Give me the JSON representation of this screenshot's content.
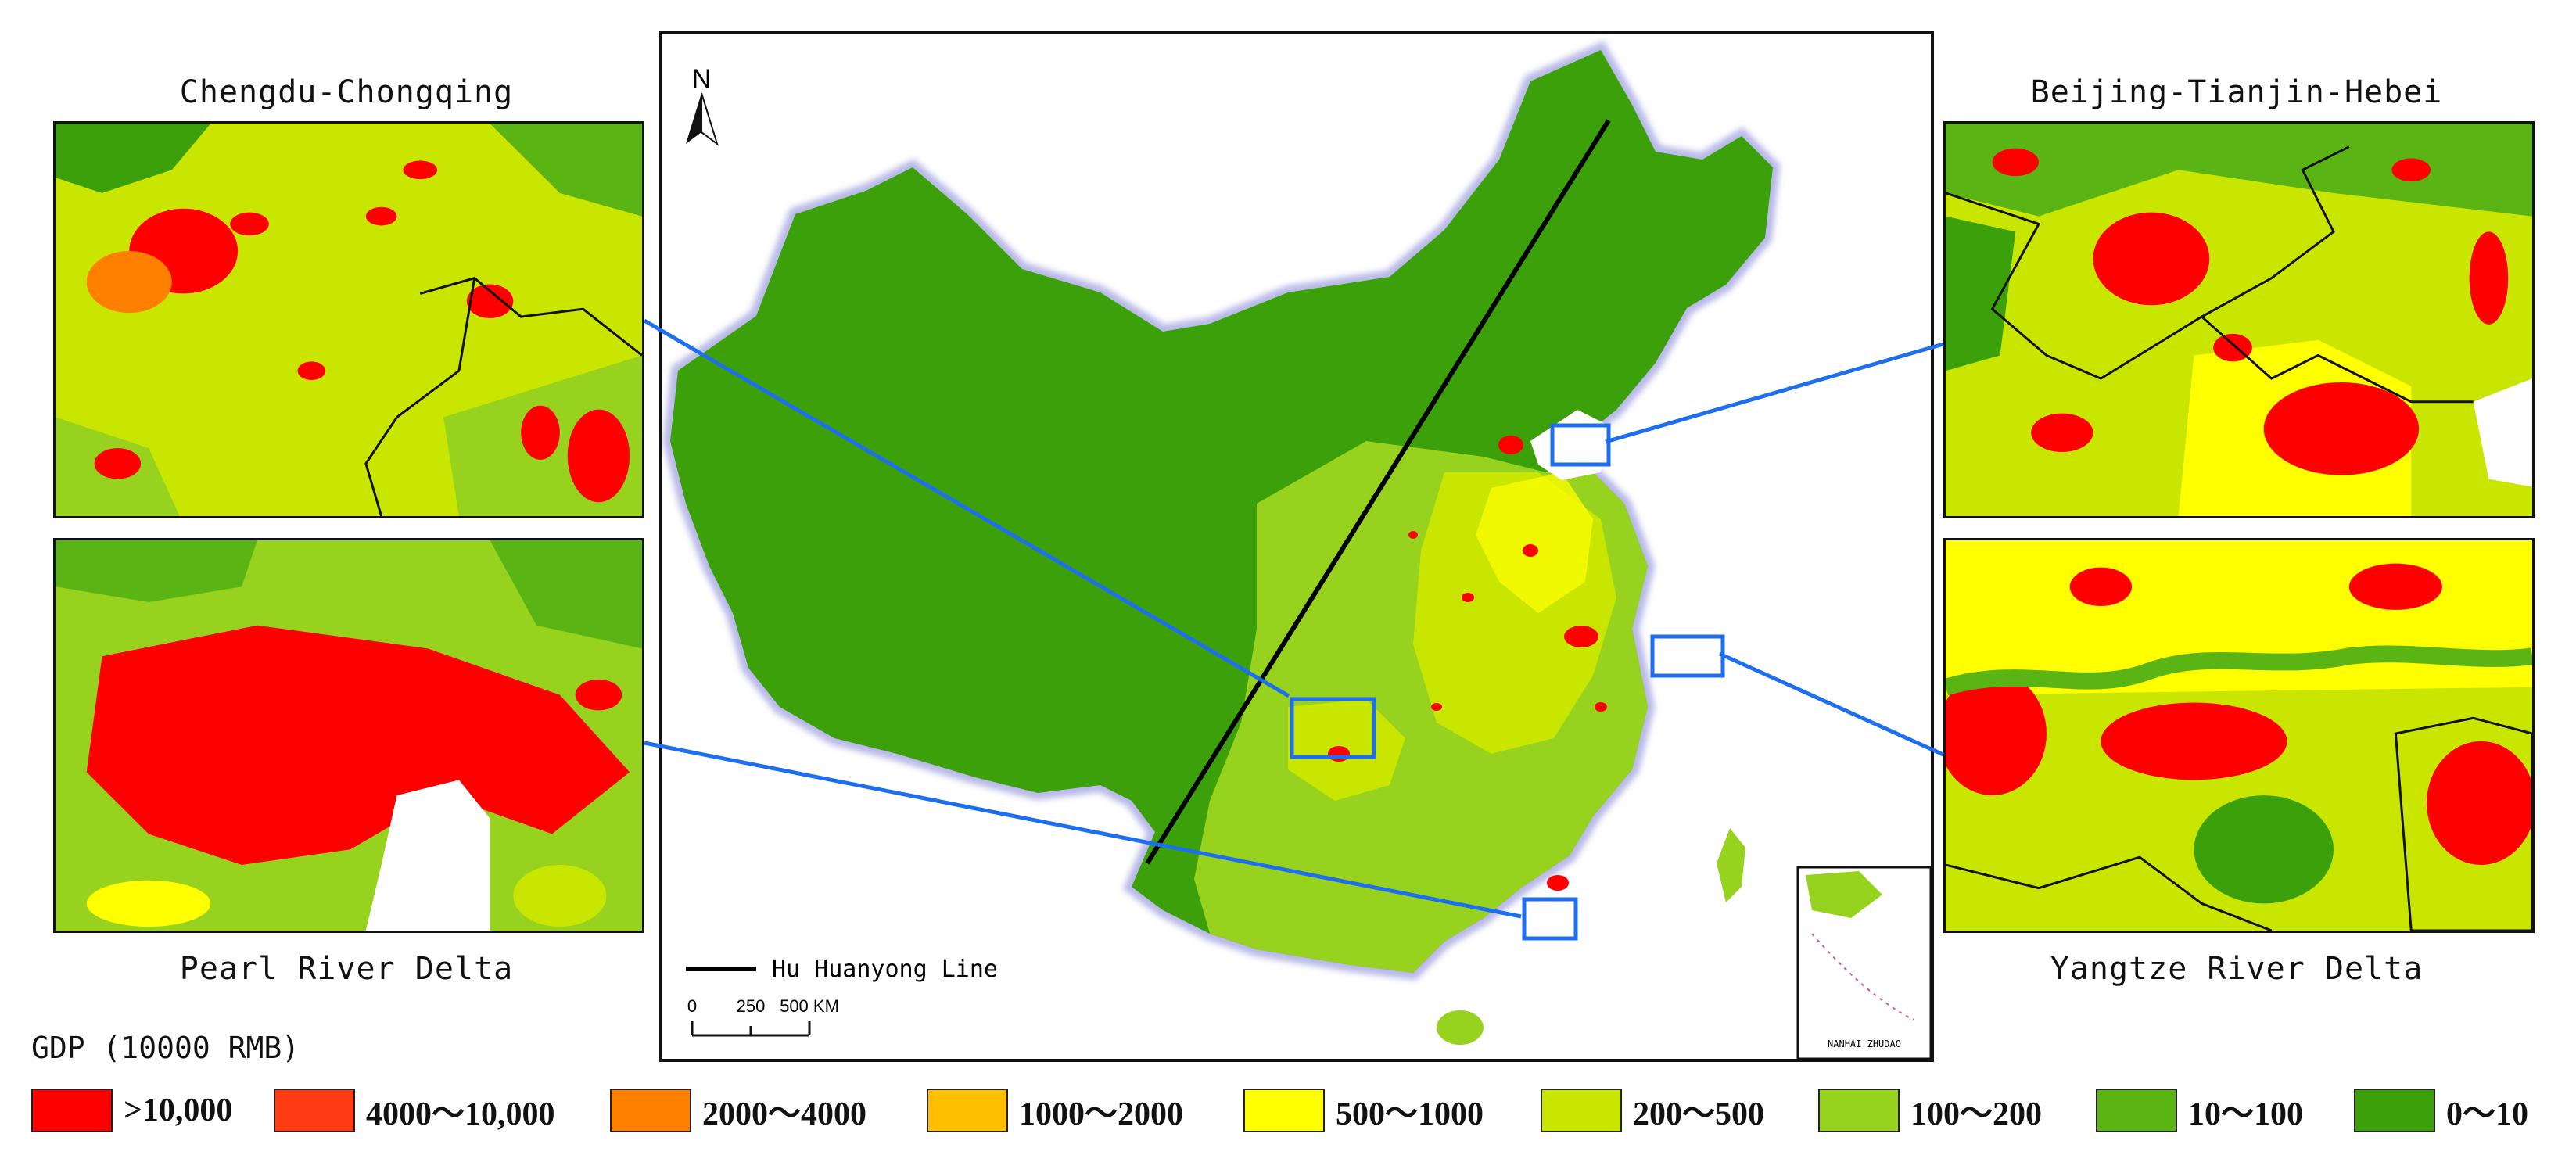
{
  "panels": {
    "top_left": {
      "title": "Chengdu-Chongqing"
    },
    "bottom_left": {
      "title": "Pearl River Delta"
    },
    "top_right": {
      "title": "Beijing-Tianjin-Hebei"
    },
    "bottom_right": {
      "title": "Yangtze River Delta"
    }
  },
  "main_map": {
    "north_label": "N",
    "line_legend_label": "Hu Huanyong Line",
    "scale_bar": {
      "labels": [
        "0",
        "250",
        "500 KM"
      ]
    },
    "inset_label": "NANHAI ZHUDAO"
  },
  "legend": {
    "title": "GDP (10000 RMB)",
    "items": [
      {
        "label": ">10,000",
        "color": "#ff0000"
      },
      {
        "label": "4000～10,000",
        "color": "#ff3c14"
      },
      {
        "label": "2000～4000",
        "color": "#ff8000"
      },
      {
        "label": "1000～2000",
        "color": "#ffbf00"
      },
      {
        "label": "500～1000",
        "color": "#ffff00"
      },
      {
        "label": "200～500",
        "color": "#c8e600"
      },
      {
        "label": "100～200",
        "color": "#96d21e"
      },
      {
        "label": "10～100",
        "color": "#5ab414"
      },
      {
        "label": "0～10",
        "color": "#3ca00a"
      }
    ]
  },
  "colors": {
    "connector": "#1e6ef0",
    "highlight_box": "#1e6ef0",
    "hu_line": "#000000",
    "map_base": "#3ca00a"
  }
}
